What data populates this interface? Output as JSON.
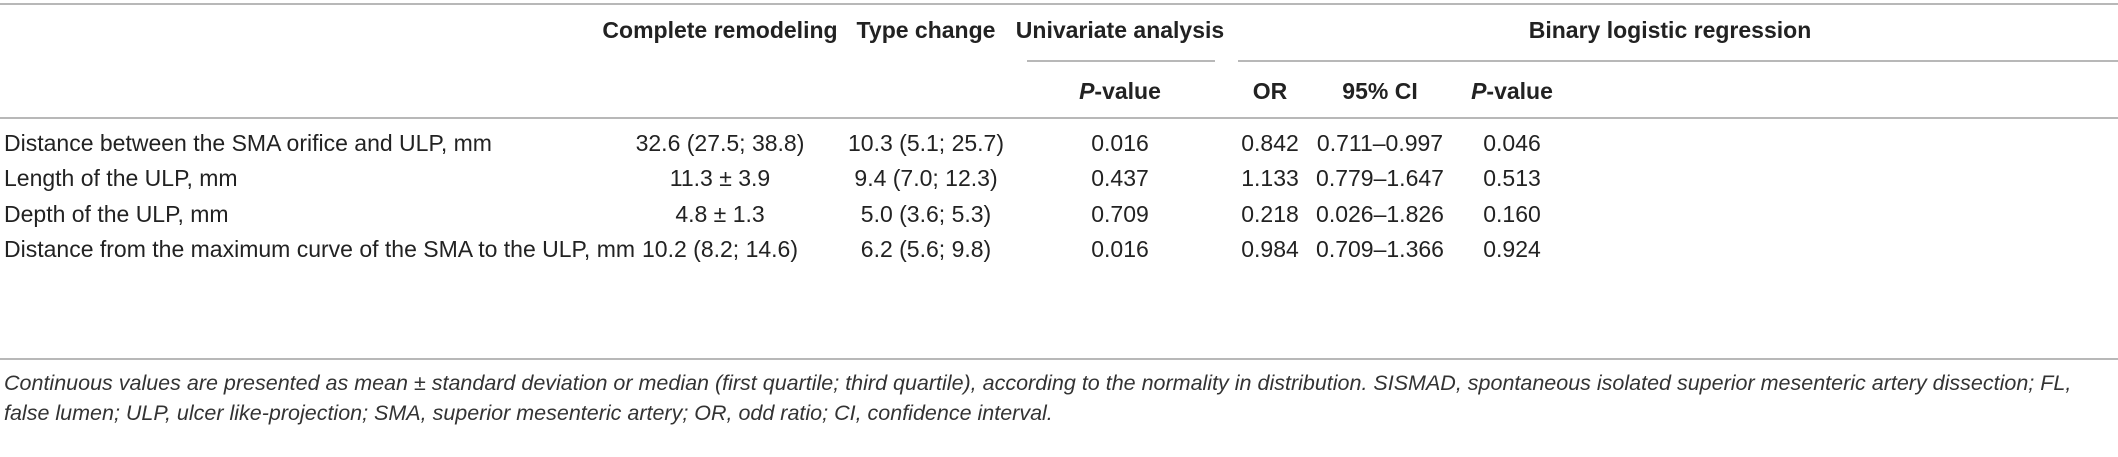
{
  "header": {
    "col_complete": "Complete remodeling",
    "col_type_change": "Type change",
    "col_univariate": "Univariate analysis",
    "col_binary": "Binary logistic regression",
    "sub_pvalue_prefix": "P",
    "sub_pvalue_suffix": "-value",
    "sub_or": "OR",
    "sub_ci": "95% CI"
  },
  "rows": [
    {
      "label": "Distance between the SMA orifice and ULP, mm",
      "complete": "32.6 (27.5; 38.8)",
      "type_change": "10.3 (5.1; 25.7)",
      "univariate_p": "0.016",
      "or": "0.842",
      "ci": "0.711–0.997",
      "binary_p": "0.046"
    },
    {
      "label": "Length of the ULP, mm",
      "complete": "11.3 ± 3.9",
      "type_change": "9.4 (7.0; 12.3)",
      "univariate_p": "0.437",
      "or": "1.133",
      "ci": "0.779–1.647",
      "binary_p": "0.513"
    },
    {
      "label": "Depth of the ULP, mm",
      "complete": "4.8 ± 1.3",
      "type_change": "5.0 (3.6; 5.3)",
      "univariate_p": "0.709",
      "or": "0.218",
      "ci": "0.026–1.826",
      "binary_p": "0.160"
    },
    {
      "label": "Distance from the maximum curve of the SMA to the ULP, mm",
      "complete": "10.2 (8.2; 14.6)",
      "type_change": "6.2 (5.6; 9.8)",
      "univariate_p": "0.016",
      "or": "0.984",
      "ci": "0.709–1.366",
      "binary_p": "0.924"
    }
  ],
  "footnote": "Continuous values are presented as mean ± standard deviation or median (first quartile; third quartile), according to the normality in distribution. SISMAD, spontaneous isolated superior mesenteric artery dissection; FL, false lumen; ULP, ulcer like-projection; SMA, superior mesenteric artery; OR, odd ratio; CI, confidence interval."
}
